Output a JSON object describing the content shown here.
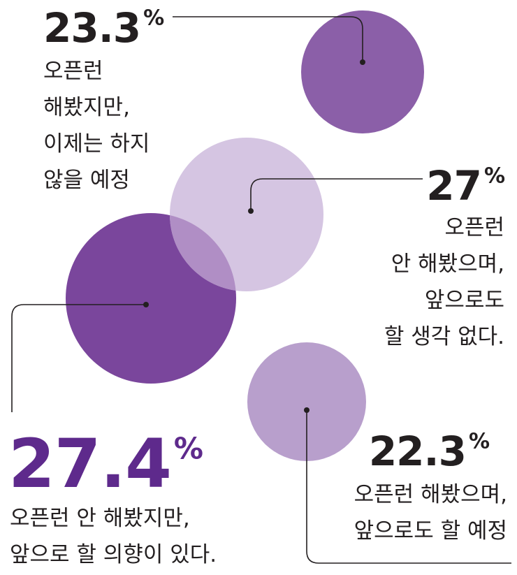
{
  "chart_data": {
    "type": "bubble",
    "items": [
      {
        "value": 23.3,
        "label": "23.3",
        "unit": "%",
        "description": [
          "오픈런",
          "해봤지만,",
          "이제는 하지",
          "않을 예정"
        ],
        "color": "#8B5FA8"
      },
      {
        "value": 27,
        "label": "27",
        "unit": "%",
        "description": [
          "오픈런",
          "안 해봤으며,",
          "앞으로도",
          "할 생각 없다."
        ],
        "color": "#D5C5E2"
      },
      {
        "value": 27.4,
        "label": "27.4",
        "unit": "%",
        "description": [
          "오픈런 안 해봤지만,",
          "앞으로 할 의향이 있다."
        ],
        "color": "#7A469C",
        "highlight_color": "#5E2A8C"
      },
      {
        "value": 22.3,
        "label": "22.3",
        "unit": "%",
        "description": [
          "오픈런 해봤으며,",
          "앞으로도 할 예정"
        ],
        "color": "#B89FCC"
      }
    ],
    "overlap_color": "#B08EC5",
    "text_color": "#231F20",
    "line_color": "#231F20"
  }
}
